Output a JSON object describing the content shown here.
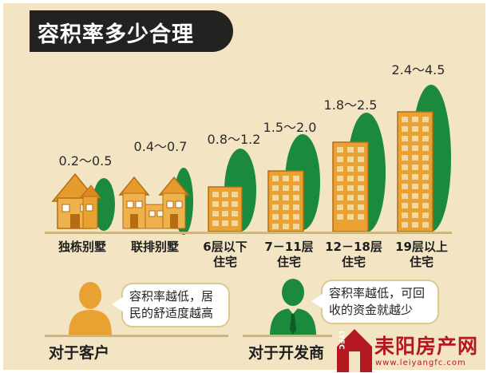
{
  "title": "容积率多少合理",
  "colors": {
    "panel_bg": "#f3e5c3",
    "title_bg": "#242121",
    "green": "#1b8a3c",
    "building_orange": "#e9a232",
    "house_orange": "#e69c2c",
    "brand_red": "#b3181f"
  },
  "categories": [
    {
      "icon": "detached-villa-icon",
      "ratio": "0.2～0.5",
      "label": [
        "独栋别墅"
      ]
    },
    {
      "icon": "townhouse-icon",
      "ratio": "0.4～0.7",
      "label": [
        "联排别墅"
      ]
    },
    {
      "icon": "low-rise-building-icon",
      "ratio": "0.8～1.2",
      "label": [
        "6层以下",
        "住宅"
      ]
    },
    {
      "icon": "multi-storey-building-icon",
      "ratio": "1.5～2.0",
      "label": [
        "7－11层",
        "住宅"
      ]
    },
    {
      "icon": "mid-high-rise-building-icon",
      "ratio": "1.8～2.5",
      "label": [
        "12－18层",
        "住宅"
      ]
    },
    {
      "icon": "high-rise-building-icon",
      "ratio": "2.4～4.5",
      "label": [
        "19层以上",
        "住宅"
      ]
    }
  ],
  "customer": {
    "icon": "customer-person-icon",
    "bubble": [
      "容积率越低，居",
      "民的舒适度越高"
    ],
    "label": "对于客户"
  },
  "developer": {
    "icon": "developer-person-icon",
    "bubble": [
      "容积率越低，可回",
      "收的资金就越少"
    ],
    "label": "对于开发商"
  },
  "watermark": {
    "icon": "house-logo-icon",
    "side_text": "LYFC",
    "name": "耒阳房产网",
    "url": "www.leiyangfc.com"
  }
}
